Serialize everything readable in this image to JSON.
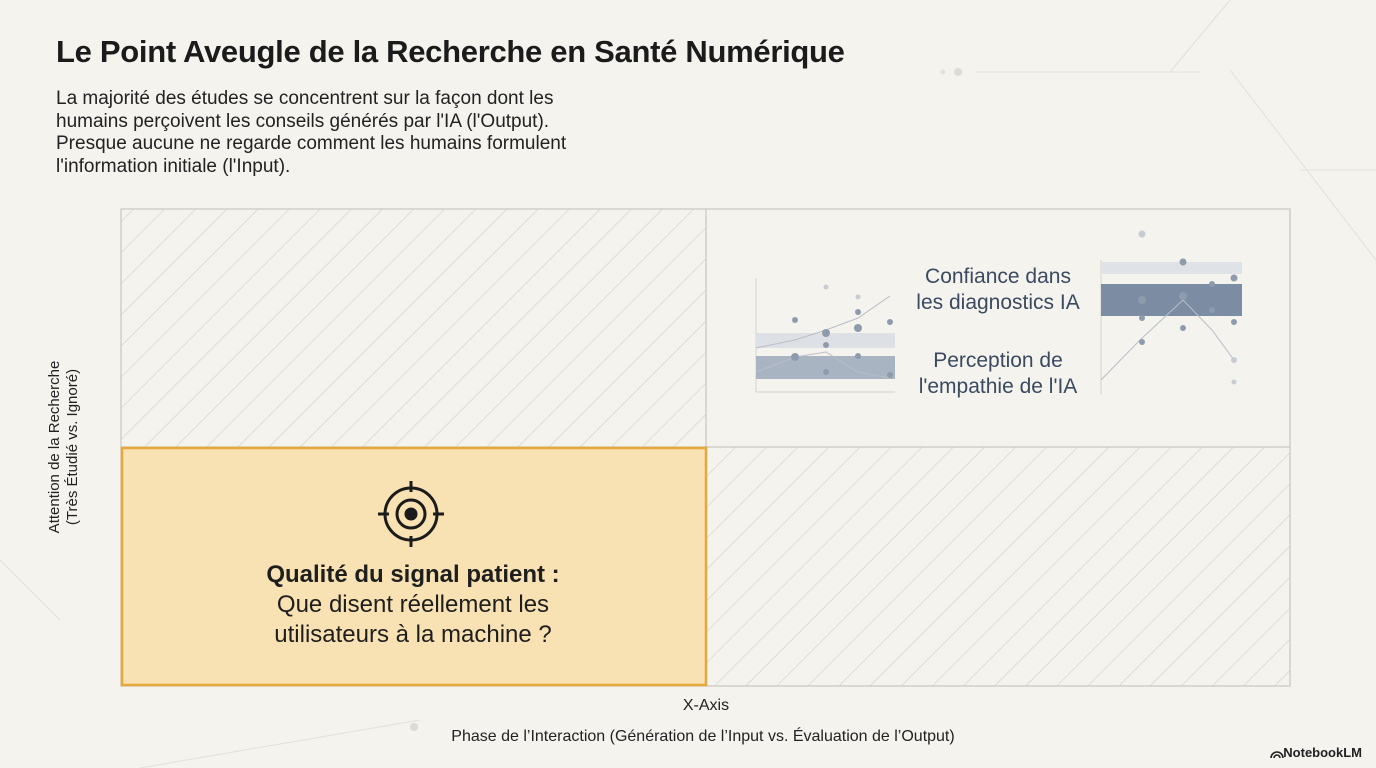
{
  "header": {
    "title": "Le Point Aveugle de la Recherche en Santé Numérique",
    "subtitle_lines": [
      "La majorité des études se concentrent sur la façon dont les",
      "humains perçoivent les conseils générés par l'IA (l'Output).",
      "Presque aucune ne regarde comment les humains formulent",
      "l'information initiale (l'Input)."
    ]
  },
  "axes": {
    "y_label_lines": [
      "Attention de la Recherche",
      "(Très Étudié vs. Ignoré)"
    ],
    "x_tag": "X-Axis",
    "x_label": "Phase de l’Interaction (Génération de l’Input vs. Évaluation de l’Output)"
  },
  "quadrants": {
    "top_right": {
      "label_1_lines": [
        "Confiance dans",
        "les diagnostics IA"
      ],
      "label_2_lines": [
        "Perception de",
        "l'empathie de l'IA"
      ]
    },
    "bottom_left": {
      "heading": "Qualité du signal patient :",
      "body_lines": [
        "Que disent réellement les",
        "utilisateurs à la machine ?"
      ]
    }
  },
  "footer": {
    "brand": "NotebookLM"
  }
}
